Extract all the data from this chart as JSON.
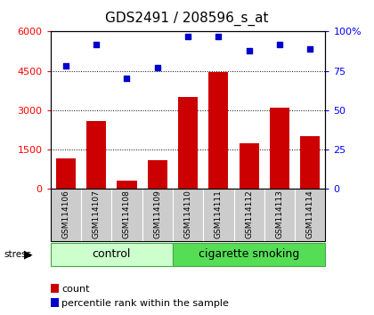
{
  "title": "GDS2491 / 208596_s_at",
  "categories": [
    "GSM114106",
    "GSM114107",
    "GSM114108",
    "GSM114109",
    "GSM114110",
    "GSM114111",
    "GSM114112",
    "GSM114113",
    "GSM114114"
  ],
  "count_values": [
    1150,
    2600,
    320,
    1100,
    3500,
    4450,
    1750,
    3100,
    2000
  ],
  "percentile_values": [
    78,
    92,
    70,
    77,
    97,
    97,
    88,
    92,
    89
  ],
  "ylim_left": [
    0,
    6000
  ],
  "ylim_right": [
    0,
    100
  ],
  "yticks_left": [
    0,
    1500,
    3000,
    4500,
    6000
  ],
  "yticks_right": [
    0,
    25,
    50,
    75,
    100
  ],
  "bar_color": "#cc0000",
  "dot_color": "#0000cc",
  "n_control": 4,
  "n_smoking": 5,
  "control_label": "control",
  "smoking_label": "cigarette smoking",
  "stress_label": "stress",
  "legend_count": "count",
  "legend_percentile": "percentile rank within the sample",
  "control_color": "#ccffcc",
  "smoking_color": "#55dd55",
  "xticklabel_bg": "#cccccc",
  "title_fontsize": 11,
  "tick_fontsize": 8,
  "legend_fontsize": 8
}
